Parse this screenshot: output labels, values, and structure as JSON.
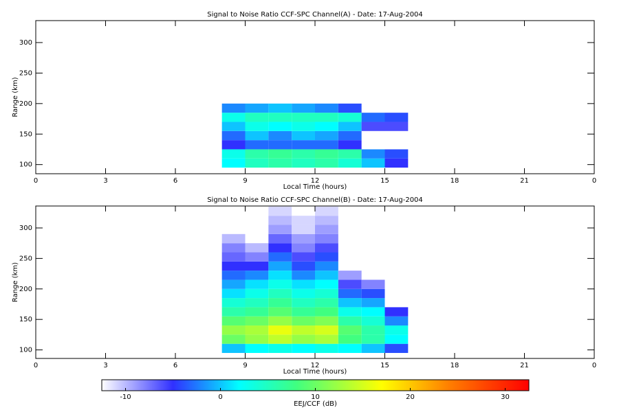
{
  "chart_data": [
    {
      "type": "heatmap",
      "title": "Signal to Noise Ratio CCF-SPC Channel(A) - Date: 17-Aug-2004",
      "x_label": "Local Time (hours)",
      "y_label": "Range (km)",
      "xlim": [
        0,
        24
      ],
      "xticks": [
        0,
        3,
        6,
        9,
        12,
        15,
        18,
        21,
        {
          "value": 24,
          "label": "0"
        }
      ],
      "ylim": [
        85,
        336
      ],
      "yticks": [
        100,
        150,
        200,
        250,
        300
      ],
      "xbins": [
        8,
        9,
        10,
        11,
        12,
        13,
        14,
        15,
        16,
        17
      ],
      "ybins": [
        95,
        110,
        125,
        140,
        155,
        170,
        185,
        200,
        215,
        230,
        245,
        260,
        275,
        290,
        305,
        320,
        335
      ],
      "values": [
        [
          2,
          5,
          6,
          5,
          6,
          4,
          0,
          -5,
          null
        ],
        [
          3,
          6,
          7,
          6,
          7,
          6,
          -2,
          -4,
          null
        ],
        [
          -5,
          -3,
          -3,
          -3,
          -3,
          -5,
          null,
          null,
          null
        ],
        [
          -3,
          0,
          -2,
          0,
          -1,
          -3,
          null,
          null,
          null
        ],
        [
          0,
          3,
          2,
          3,
          2,
          0,
          -6,
          -6,
          null
        ],
        [
          3,
          5,
          5,
          5,
          5,
          4,
          -3,
          -4,
          null
        ],
        [
          -2,
          -1,
          0,
          -1,
          -2,
          -4,
          null,
          null,
          null
        ],
        [
          null,
          null,
          null,
          null,
          null,
          null,
          null,
          null,
          null
        ],
        [
          null,
          null,
          null,
          null,
          null,
          null,
          null,
          null,
          null
        ],
        [
          null,
          null,
          null,
          null,
          null,
          null,
          null,
          null,
          null
        ],
        [
          null,
          null,
          null,
          null,
          null,
          null,
          null,
          null,
          null
        ],
        [
          null,
          null,
          null,
          null,
          null,
          null,
          null,
          null,
          null
        ],
        [
          null,
          null,
          null,
          null,
          null,
          null,
          null,
          null,
          null
        ],
        [
          null,
          null,
          null,
          null,
          null,
          null,
          null,
          null,
          null
        ],
        [
          null,
          null,
          null,
          null,
          null,
          null,
          null,
          null,
          null
        ],
        [
          null,
          null,
          null,
          null,
          null,
          null,
          null,
          null,
          null
        ]
      ]
    },
    {
      "type": "heatmap",
      "title": "Signal to Noise Ratio CCF-SPC Channel(B) - Date: 17-Aug-2004",
      "x_label": "Local Time (hours)",
      "y_label": "Range (km)",
      "xlim": [
        0,
        24
      ],
      "xticks": [
        0,
        3,
        6,
        9,
        12,
        15,
        18,
        21,
        {
          "value": 24,
          "label": "0"
        }
      ],
      "ylim": [
        86,
        336
      ],
      "yticks": [
        100,
        150,
        200,
        250,
        300
      ],
      "xbins": [
        8,
        9,
        10,
        11,
        12,
        13,
        14,
        15,
        16,
        17
      ],
      "ybins": [
        95,
        110,
        125,
        140,
        155,
        170,
        185,
        200,
        215,
        230,
        245,
        260,
        275,
        290,
        305,
        320,
        335
      ],
      "values": [
        [
          0,
          2,
          3,
          2,
          3,
          2,
          0,
          -4,
          null
        ],
        [
          10,
          12,
          14,
          12,
          13,
          8,
          6,
          2,
          null
        ],
        [
          12,
          13,
          16,
          14,
          15,
          9,
          6,
          3,
          null
        ],
        [
          9,
          10,
          12,
          10,
          11,
          6,
          4,
          -2,
          null
        ],
        [
          6,
          7,
          9,
          7,
          8,
          3,
          2,
          -5,
          null
        ],
        [
          4,
          5,
          7,
          5,
          6,
          0,
          -1,
          null,
          null
        ],
        [
          1,
          3,
          5,
          3,
          4,
          -3,
          -4,
          null,
          null
        ],
        [
          -1,
          1,
          3,
          1,
          2,
          -6,
          -8,
          null,
          null
        ],
        [
          -3,
          -2,
          1,
          -2,
          0,
          -9,
          null,
          null,
          null
        ],
        [
          -5,
          -5,
          -1,
          -4,
          -2,
          null,
          null,
          null,
          null
        ],
        [
          -7,
          -8,
          -3,
          -6,
          -4,
          null,
          null,
          null,
          null
        ],
        [
          -8,
          -10,
          -5,
          -8,
          -6,
          null,
          null,
          null,
          null
        ],
        [
          -10,
          null,
          -7,
          -9,
          -8,
          null,
          null,
          null,
          null
        ],
        [
          null,
          null,
          -9,
          -11,
          -9,
          null,
          null,
          null,
          null
        ],
        [
          null,
          null,
          -10,
          -11,
          -10,
          null,
          null,
          null,
          null
        ],
        [
          null,
          null,
          -11,
          null,
          -11,
          null,
          null,
          null,
          null
        ]
      ]
    }
  ],
  "colorbar": {
    "label": "EEJ/CCF (dB)",
    "clim": [
      -12.5,
      32.5
    ],
    "ticks": [
      -10,
      0,
      10,
      20,
      30
    ],
    "colormap": {
      "values": [
        -12.5,
        -5,
        2,
        8,
        17,
        24,
        32.5
      ],
      "colors": [
        "#ffffff",
        "#3030ff",
        "#00ffff",
        "#40ff80",
        "#ffff00",
        "#ff8000",
        "#ff0000"
      ]
    }
  }
}
